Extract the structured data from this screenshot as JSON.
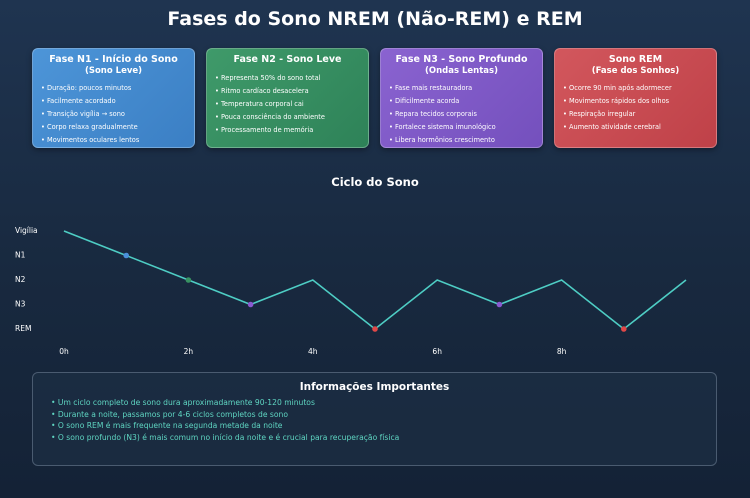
{
  "title": "Fases do Sono NREM (Não-REM) e REM",
  "cards": [
    {
      "title": "Fase N1 - Início do Sono",
      "subtitle": "(Sono Leve)",
      "color": "#4a90d9",
      "items": [
        "Duração: poucos minutos",
        "Facilmente acordado",
        "Transição vigília → sono",
        "Corpo relaxa gradualmente",
        "Movimentos oculares lentos"
      ]
    },
    {
      "title": "Fase N2 - Sono Leve",
      "subtitle": "",
      "color": "#389363",
      "items": [
        "Representa 50% do sono total",
        "Ritmo cardíaco desacelera",
        "Temperatura corporal cai",
        "Pouca consciência do ambiente",
        "Processamento de memória"
      ]
    },
    {
      "title": "Fase N3 - Sono Profundo",
      "subtitle": "(Ondas Lentas)",
      "color": "#7e5ac8",
      "items": [
        "Fase mais restauradora",
        "Dificilmente acorda",
        "Repara tecidos corporais",
        "Fortalece sistema imunológico",
        "Libera hormônios crescimento"
      ]
    },
    {
      "title": "Sono REM",
      "subtitle": "(Fase dos Sonhos)",
      "color": "#c94c52",
      "items": [
        "Ocorre 90 min após adormecer",
        "Movimentos rápidos dos olhos",
        "Respiração irregular",
        "Aumento atividade cerebral"
      ]
    }
  ],
  "chart_data": {
    "type": "line",
    "title": "Ciclo do Sono",
    "y_categories": [
      "Vigília",
      "N1",
      "N2",
      "N3",
      "REM"
    ],
    "x_ticks": [
      "0h",
      "2h",
      "4h",
      "6h",
      "8h"
    ],
    "x_tick_values": [
      0,
      2,
      4,
      6,
      8
    ],
    "xlim": [
      0,
      10
    ],
    "line_color": "#4ecdc4",
    "series": [
      {
        "x": [
          0,
          1,
          2,
          3,
          4,
          5,
          6,
          7,
          8,
          9,
          10
        ],
        "y": [
          "Vigília",
          "N1",
          "N2",
          "N3",
          "N2",
          "REM",
          "N2",
          "N3",
          "N2",
          "REM",
          "N2"
        ],
        "markers": [
          {
            "x": 1,
            "y": "N1",
            "color": "#4a90d9"
          },
          {
            "x": 2,
            "y": "N2",
            "color": "#389363"
          },
          {
            "x": 3,
            "y": "N3",
            "color": "#8a5ad0"
          },
          {
            "x": 5,
            "y": "REM",
            "color": "#e04848"
          },
          {
            "x": 7,
            "y": "N3",
            "color": "#8a5ad0"
          },
          {
            "x": 9,
            "y": "REM",
            "color": "#e04848"
          }
        ]
      }
    ]
  },
  "info": {
    "title": "Informações Importantes",
    "items": [
      "Um ciclo completo de sono dura aproximadamente 90-120 minutos",
      "Durante a noite, passamos por 4-6 ciclos completos de sono",
      "O sono REM é mais frequente na segunda metade da noite",
      "O sono profundo (N3) é mais comum no início da noite e é crucial para recuperação física"
    ]
  }
}
